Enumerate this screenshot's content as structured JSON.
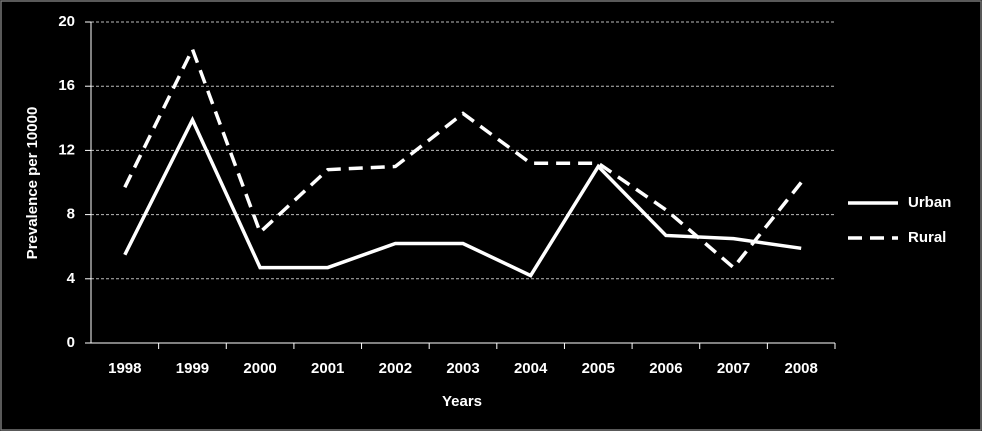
{
  "chart_data": {
    "type": "line",
    "x_label": "Years",
    "y_label": "Prevalence per 10000",
    "categories": [
      "1998",
      "1999",
      "2000",
      "2001",
      "2002",
      "2003",
      "2004",
      "2005",
      "2006",
      "2007",
      "2008"
    ],
    "series": [
      {
        "name": "Urban",
        "color": "#ffffff",
        "dashed": false,
        "values": [
          5.5,
          13.9,
          4.7,
          4.7,
          6.2,
          6.2,
          4.2,
          11.0,
          6.7,
          6.5,
          5.9
        ]
      },
      {
        "name": "Rural",
        "color": "#ffffff",
        "dashed": true,
        "values": [
          9.7,
          18.3,
          6.9,
          10.8,
          11.0,
          14.3,
          11.2,
          11.2,
          8.3,
          4.7,
          10.0
        ]
      }
    ],
    "ylim": [
      0,
      20
    ],
    "yticks": [
      0,
      4,
      8,
      12,
      16,
      20
    ],
    "grid": true,
    "legend": "right"
  }
}
